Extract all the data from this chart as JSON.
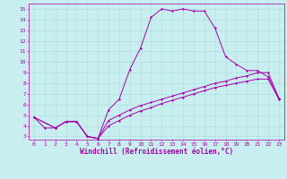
{
  "xlabel": "Windchill (Refroidissement éolien,°C)",
  "bg_color": "#c8eef0",
  "line_color": "#aa00aa",
  "xlim": [
    -0.5,
    23.5
  ],
  "ylim": [
    2.7,
    15.5
  ],
  "xticks": [
    0,
    1,
    2,
    3,
    4,
    5,
    6,
    7,
    8,
    9,
    10,
    11,
    12,
    13,
    14,
    15,
    16,
    17,
    18,
    19,
    20,
    21,
    22,
    23
  ],
  "yticks": [
    3,
    4,
    5,
    6,
    7,
    8,
    9,
    10,
    11,
    12,
    13,
    14,
    15
  ],
  "curve1_x": [
    0,
    1,
    2,
    3,
    4,
    5,
    6,
    7,
    8,
    9,
    10,
    11,
    12,
    13,
    14,
    15,
    16,
    17,
    18,
    19,
    20,
    21,
    22,
    23
  ],
  "curve1_y": [
    4.8,
    3.8,
    3.8,
    4.4,
    4.4,
    3.0,
    2.8,
    5.5,
    6.5,
    9.3,
    11.3,
    14.2,
    15.0,
    14.8,
    15.0,
    14.8,
    14.8,
    13.2,
    10.5,
    9.8,
    9.2,
    9.2,
    8.6,
    6.6
  ],
  "curve2_x": [
    0,
    2,
    3,
    4,
    5,
    6,
    7,
    8,
    9,
    10,
    11,
    12,
    13,
    14,
    15,
    16,
    17,
    18,
    19,
    20,
    21,
    22,
    23
  ],
  "curve2_y": [
    4.8,
    3.8,
    4.4,
    4.4,
    3.0,
    2.8,
    4.5,
    5.0,
    5.5,
    5.9,
    6.2,
    6.5,
    6.8,
    7.1,
    7.4,
    7.7,
    8.0,
    8.2,
    8.5,
    8.7,
    9.0,
    9.0,
    6.6
  ],
  "curve3_x": [
    0,
    2,
    3,
    4,
    5,
    6,
    7,
    8,
    9,
    10,
    11,
    12,
    13,
    14,
    15,
    16,
    17,
    18,
    19,
    20,
    21,
    22,
    23
  ],
  "curve3_y": [
    4.8,
    3.8,
    4.4,
    4.4,
    3.0,
    2.8,
    4.0,
    4.5,
    5.0,
    5.4,
    5.7,
    6.1,
    6.4,
    6.7,
    7.0,
    7.3,
    7.6,
    7.8,
    8.0,
    8.2,
    8.4,
    8.4,
    6.5
  ],
  "grid_color": "#a8dde0",
  "tick_fontsize": 4.5,
  "xlabel_fontsize": 5.5,
  "marker_size": 1.5,
  "line_width": 0.7
}
